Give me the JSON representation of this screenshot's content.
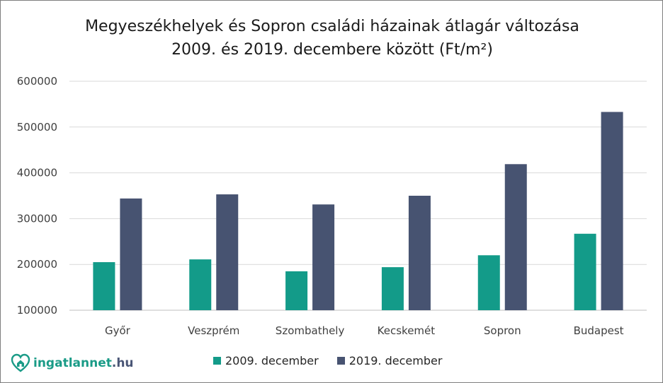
{
  "chart_data": {
    "type": "bar",
    "title_lines": [
      "Megyeszékhelyek és Sopron családi házainak átlagár változása",
      "2009. és 2019. decembere között (Ft/m²)"
    ],
    "categories": [
      "Győr",
      "Veszprém",
      "Szombathely",
      "Kecskemét",
      "Sopron",
      "Budapest"
    ],
    "series": [
      {
        "name": "2009. december",
        "color": "#139b89",
        "values": [
          205000,
          211000,
          185000,
          194000,
          220000,
          267000
        ]
      },
      {
        "name": "2019. december",
        "color": "#475371",
        "values": [
          344000,
          353000,
          331000,
          350000,
          419000,
          533000
        ]
      }
    ],
    "y_ticks": [
      "100000",
      "200000",
      "300000",
      "400000",
      "500000",
      "600000"
    ],
    "ylim": [
      100000,
      600000
    ],
    "grid": true,
    "legend_position": "bottom"
  },
  "brand": {
    "logo_icon": "house-heart-icon",
    "name_part1": "ingatlannet",
    "name_part2": ".hu",
    "color_primary": "#1a9b87",
    "color_secondary": "#4a5676"
  }
}
